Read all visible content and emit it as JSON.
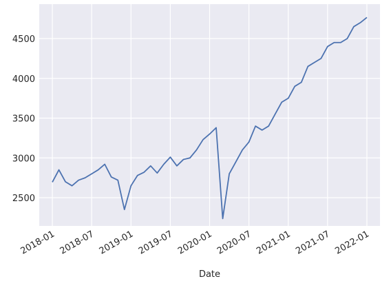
{
  "chart_data": {
    "type": "line",
    "xlabel": "Date",
    "x": [
      "2018-01",
      "2018-02",
      "2018-03",
      "2018-04",
      "2018-05",
      "2018-06",
      "2018-07",
      "2018-08",
      "2018-09",
      "2018-10",
      "2018-11",
      "2018-12",
      "2019-01",
      "2019-02",
      "2019-03",
      "2019-04",
      "2019-05",
      "2019-06",
      "2019-07",
      "2019-08",
      "2019-09",
      "2019-10",
      "2019-11",
      "2019-12",
      "2020-01",
      "2020-02",
      "2020-03",
      "2020-04",
      "2020-05",
      "2020-06",
      "2020-07",
      "2020-08",
      "2020-09",
      "2020-10",
      "2020-11",
      "2020-12",
      "2021-01",
      "2021-02",
      "2021-03",
      "2021-04",
      "2021-05",
      "2021-06",
      "2021-07",
      "2021-08",
      "2021-09",
      "2021-10",
      "2021-11",
      "2021-12",
      "2022-01"
    ],
    "values": [
      2695,
      2850,
      2700,
      2650,
      2720,
      2750,
      2800,
      2850,
      2920,
      2760,
      2720,
      2351,
      2650,
      2780,
      2820,
      2900,
      2810,
      2920,
      3010,
      2900,
      2980,
      3000,
      3100,
      3230,
      3300,
      3380,
      2237,
      2800,
      2950,
      3100,
      3200,
      3400,
      3350,
      3400,
      3550,
      3700,
      3750,
      3900,
      3950,
      4150,
      4200,
      4250,
      4400,
      4450,
      4450,
      4500,
      4650,
      4700,
      4766
    ],
    "color": "#4c72b0",
    "xlim": [
      "2017-11",
      "2022-03"
    ],
    "xticks": [
      "2018-01",
      "2018-07",
      "2019-01",
      "2019-07",
      "2020-01",
      "2020-07",
      "2021-01",
      "2021-07",
      "2022-01"
    ],
    "ylim": [
      2145,
      4933
    ],
    "yticks": [
      2500,
      3000,
      3500,
      4000,
      4500
    ],
    "grid": true
  }
}
